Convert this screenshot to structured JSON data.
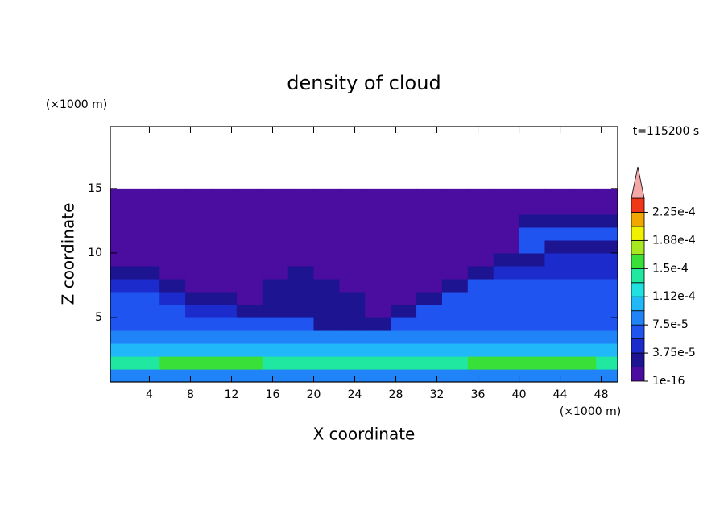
{
  "chart_data": {
    "type": "contour",
    "title": "density of cloud",
    "y_unit": "(×1000 m)",
    "x_unit": "(×1000 m)",
    "time_label": "t=115200 s",
    "xlabel": "X coordinate",
    "ylabel": "Z coordinate",
    "xlim": [
      0.2,
      49.6
    ],
    "ylim": [
      0,
      19.8
    ],
    "xticks": [
      4,
      8,
      12,
      16,
      20,
      24,
      28,
      32,
      36,
      40,
      44,
      48
    ],
    "yticks": [
      5,
      10,
      15
    ],
    "x": [
      1.25,
      3.75,
      6.25,
      8.75,
      11.25,
      13.75,
      16.25,
      18.75,
      21.25,
      23.75,
      26.25,
      28.75,
      31.25,
      33.75,
      36.25,
      38.75,
      41.25,
      43.75,
      46.25,
      48.75
    ],
    "y": [
      0.5,
      1.5,
      2.5,
      3.5,
      4.5,
      5.5,
      6.5,
      7.5,
      8.5,
      9.5,
      10.5,
      11.5,
      12.5,
      13.5,
      14.5
    ],
    "z": [
      [
        9e-05,
        9e-05,
        9e-05,
        9e-05,
        9e-05,
        9e-05,
        9e-05,
        9e-05,
        9e-05,
        9e-05,
        9e-05,
        9e-05,
        9e-05,
        9e-05,
        9e-05,
        9e-05,
        9e-05,
        9e-05,
        9e-05,
        9e-05
      ],
      [
        0.00014,
        0.00014,
        0.00016,
        0.00016,
        0.00016,
        0.00016,
        0.00014,
        0.00014,
        0.00014,
        0.00014,
        0.00014,
        0.00014,
        0.00014,
        0.00014,
        0.00016,
        0.00016,
        0.00016,
        0.00016,
        0.00016,
        0.00014
      ],
      [
        0.00011,
        0.00011,
        0.00011,
        0.00011,
        0.00011,
        0.00011,
        0.00011,
        0.00011,
        0.0001,
        0.0001,
        0.0001,
        0.0001,
        0.00011,
        0.00011,
        0.00011,
        0.00011,
        0.00011,
        0.00011,
        0.00011,
        0.00011
      ],
      [
        8e-05,
        8e-05,
        8e-05,
        8e-05,
        8e-05,
        8e-05,
        8e-05,
        8e-05,
        8e-05,
        8e-05,
        8e-05,
        8e-05,
        8e-05,
        8e-05,
        8e-05,
        8e-05,
        8e-05,
        8e-05,
        8e-05,
        8e-05
      ],
      [
        7e-05,
        7e-05,
        7e-05,
        6e-05,
        6e-05,
        6e-05,
        6e-05,
        6e-05,
        2.5e-05,
        2.5e-05,
        2.5e-05,
        6e-05,
        7e-05,
        7e-05,
        7e-05,
        7e-05,
        7e-05,
        7e-05,
        7e-05,
        7e-05
      ],
      [
        7e-05,
        7e-05,
        7e-05,
        5e-05,
        5e-05,
        2.5e-05,
        2.5e-05,
        2.5e-05,
        2.5e-05,
        2.5e-05,
        5e-06,
        2.5e-05,
        7e-05,
        7e-05,
        7e-05,
        7e-05,
        7e-05,
        7e-05,
        7e-05,
        7e-05
      ],
      [
        7e-05,
        7e-05,
        4.5e-05,
        2.5e-05,
        2.5e-05,
        5e-06,
        2.5e-05,
        2.5e-05,
        2.5e-05,
        2.5e-05,
        5e-06,
        5e-06,
        2.5e-05,
        7e-05,
        7e-05,
        7e-05,
        7e-05,
        7e-05,
        7e-05,
        7e-05
      ],
      [
        4e-05,
        4e-05,
        2.5e-05,
        5e-06,
        5e-06,
        5e-06,
        2.5e-05,
        2.5e-05,
        2.5e-05,
        5e-06,
        5e-06,
        5e-06,
        5e-06,
        2.5e-05,
        6e-05,
        6e-05,
        6e-05,
        6e-05,
        6e-05,
        6e-05
      ],
      [
        2.5e-05,
        2.5e-05,
        5e-06,
        5e-06,
        5e-06,
        5e-06,
        5e-06,
        2.5e-05,
        5e-06,
        5e-06,
        5e-06,
        5e-06,
        5e-06,
        5e-06,
        2.5e-05,
        5e-05,
        5e-05,
        5e-05,
        5e-05,
        5e-05
      ],
      [
        5e-06,
        5e-06,
        5e-06,
        5e-06,
        5e-06,
        5e-06,
        5e-06,
        5e-06,
        5e-06,
        5e-06,
        5e-06,
        5e-06,
        5e-06,
        5e-06,
        5e-06,
        2.5e-05,
        2.5e-05,
        4e-05,
        4e-05,
        4e-05
      ],
      [
        5e-06,
        5e-06,
        5e-06,
        5e-06,
        5e-06,
        5e-06,
        5e-06,
        5e-06,
        5e-06,
        5e-06,
        5e-06,
        5e-06,
        5e-06,
        5e-06,
        5e-06,
        5e-06,
        6e-05,
        2.5e-05,
        2.5e-05,
        2.5e-05
      ],
      [
        5e-06,
        5e-06,
        5e-06,
        5e-06,
        5e-06,
        5e-06,
        5e-06,
        5e-06,
        5e-06,
        5e-06,
        5e-06,
        5e-06,
        5e-06,
        5e-06,
        5e-06,
        5e-06,
        6e-05,
        6e-05,
        6e-05,
        6e-05
      ],
      [
        5e-06,
        5e-06,
        5e-06,
        5e-06,
        5e-06,
        5e-06,
        5e-06,
        5e-06,
        5e-06,
        5e-06,
        5e-06,
        5e-06,
        5e-06,
        5e-06,
        5e-06,
        5e-06,
        2.5e-05,
        2.5e-05,
        2.5e-05,
        2.5e-05
      ],
      [
        5e-06,
        5e-06,
        5e-06,
        5e-06,
        5e-06,
        5e-06,
        5e-06,
        5e-06,
        5e-06,
        5e-06,
        5e-06,
        5e-06,
        5e-06,
        5e-06,
        5e-06,
        5e-06,
        5e-06,
        5e-06,
        5e-06,
        5e-06
      ],
      [
        5e-06,
        5e-06,
        5e-06,
        5e-06,
        5e-06,
        5e-06,
        5e-06,
        5e-06,
        5e-06,
        5e-06,
        5e-06,
        5e-06,
        5e-06,
        5e-06,
        5e-06,
        5e-06,
        5e-06,
        5e-06,
        5e-06,
        5e-06
      ]
    ],
    "levels": [
      1e-16,
      1.875e-05,
      3.75e-05,
      5.625e-05,
      7.5e-05,
      9.375e-05,
      0.0001125,
      0.00013125,
      0.00015,
      0.00016875,
      0.0001875,
      0.00020625,
      0.000225,
      0.00024375
    ],
    "colors": [
      "#4b0ca0",
      "#1c1490",
      "#1c2ccc",
      "#2054f0",
      "#2084f8",
      "#20b8f8",
      "#20e0e0",
      "#20e8a0",
      "#38e038",
      "#a8e820",
      "#f0f000",
      "#f0a800",
      "#f03818"
    ],
    "extend_color": "#f4a8a8",
    "colorbar_ticks": [
      {
        "value": 1e-16,
        "label": "1e-16"
      },
      {
        "value": 3.75e-05,
        "label": "3.75e-5"
      },
      {
        "value": 7.5e-05,
        "label": "7.5e-5"
      },
      {
        "value": 0.0001125,
        "label": "1.12e-4"
      },
      {
        "value": 0.00015,
        "label": "1.5e-4"
      },
      {
        "value": 0.0001875,
        "label": "1.88e-4"
      },
      {
        "value": 0.000225,
        "label": "2.25e-4"
      }
    ]
  }
}
